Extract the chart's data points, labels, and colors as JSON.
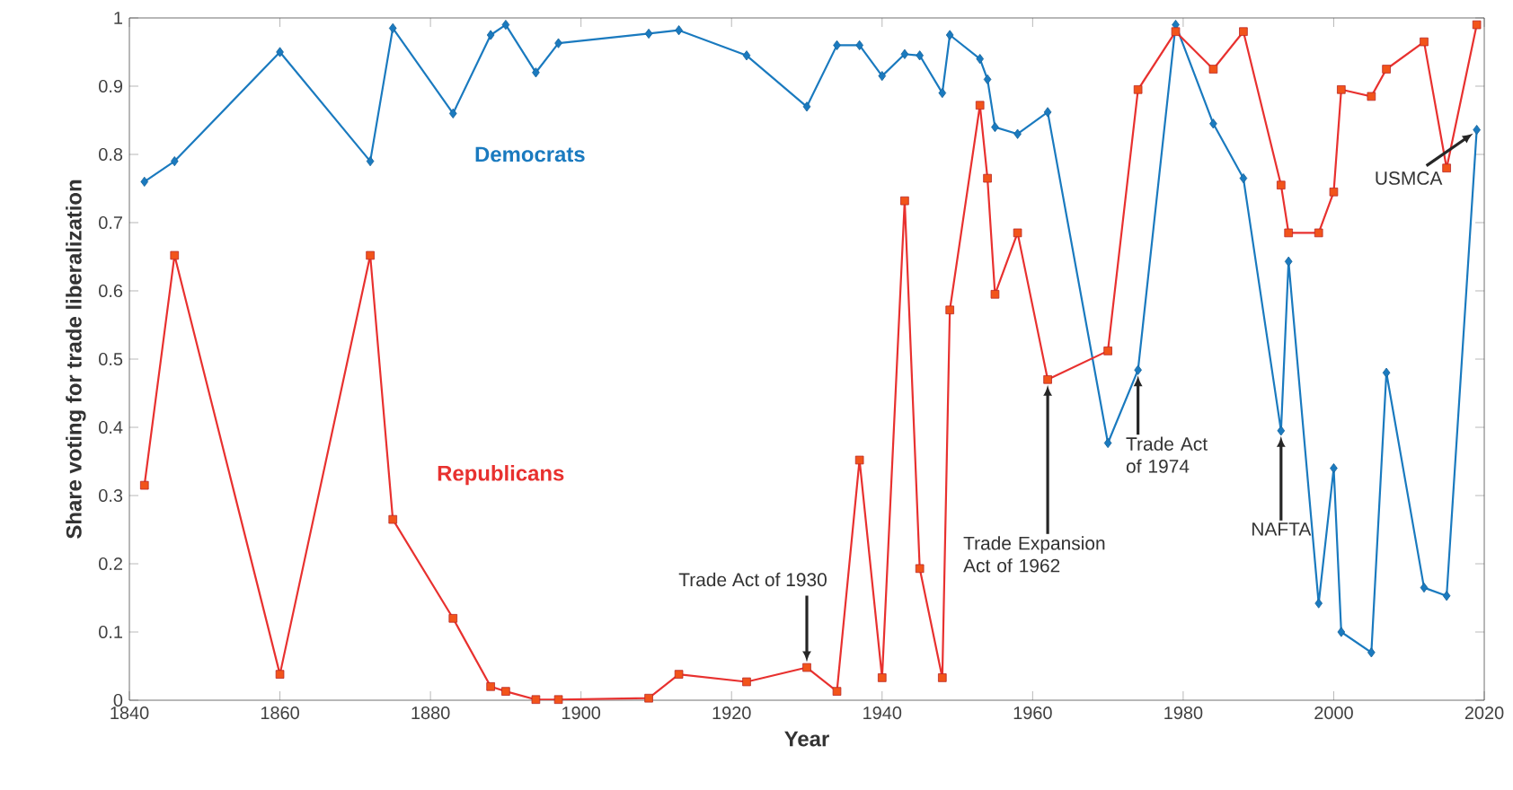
{
  "chart_data": {
    "type": "line",
    "xlabel": "Year",
    "ylabel": "Share voting for trade liberalization",
    "xlim": [
      1840,
      2020
    ],
    "ylim": [
      0,
      1
    ],
    "xticks": [
      1840,
      1860,
      1880,
      1900,
      1920,
      1940,
      1960,
      1980,
      2000,
      2020
    ],
    "yticks": [
      0,
      0.1,
      0.2,
      0.3,
      0.4,
      0.5,
      0.6,
      0.7,
      0.8,
      0.9,
      1
    ],
    "grid": false,
    "legend": false,
    "x": [
      1842,
      1846,
      1860,
      1872,
      1875,
      1883,
      1888,
      1890,
      1894,
      1897,
      1909,
      1913,
      1922,
      1930,
      1934,
      1937,
      1940,
      1943,
      1945,
      1948,
      1949,
      1953,
      1954,
      1955,
      1958,
      1962,
      1970,
      1974,
      1979,
      1984,
      1988,
      1993,
      1994,
      1998,
      2000,
      2001,
      2005,
      2007,
      2012,
      2015,
      2019
    ],
    "series": [
      {
        "name": "Democrats",
        "color": "#1a7abf",
        "marker": "diamond",
        "values": [
          0.76,
          0.79,
          0.95,
          0.79,
          0.985,
          0.86,
          0.975,
          0.99,
          0.92,
          0.963,
          0.977,
          0.982,
          0.945,
          0.87,
          0.96,
          0.96,
          0.915,
          0.947,
          0.945,
          0.89,
          0.975,
          0.94,
          0.91,
          0.84,
          0.83,
          0.862,
          0.377,
          0.484,
          0.99,
          0.845,
          0.765,
          0.395,
          0.643,
          0.142,
          0.34,
          0.1,
          0.07,
          0.48,
          0.165,
          0.153,
          0.836
        ]
      },
      {
        "name": "Republicans",
        "color": "#e8312f",
        "marker": "square",
        "values": [
          0.315,
          0.652,
          0.038,
          0.652,
          0.265,
          0.12,
          0.02,
          0.013,
          0.001,
          0.001,
          0.003,
          0.038,
          0.027,
          0.048,
          0.013,
          0.352,
          0.033,
          0.732,
          0.193,
          0.033,
          0.572,
          0.872,
          0.765,
          0.595,
          0.685,
          0.47,
          0.512,
          0.895,
          0.98,
          0.925,
          0.98,
          0.755,
          0.685,
          0.685,
          0.745,
          0.895,
          0.885,
          0.925,
          0.965,
          0.78,
          0.99
        ]
      }
    ],
    "annotations": [
      {
        "text": "Trade Act of 1930",
        "x": 1930,
        "y": 0.048
      },
      {
        "text": "Trade Expansion Act of 1962",
        "x": 1962,
        "y": 0.47
      },
      {
        "text": "Trade Act of 1974",
        "x": 1974,
        "y": 0.484
      },
      {
        "text": "NAFTA",
        "x": 1993,
        "y": 0.395
      },
      {
        "text": "USMCA",
        "x": 2019,
        "y": 0.836
      }
    ]
  }
}
